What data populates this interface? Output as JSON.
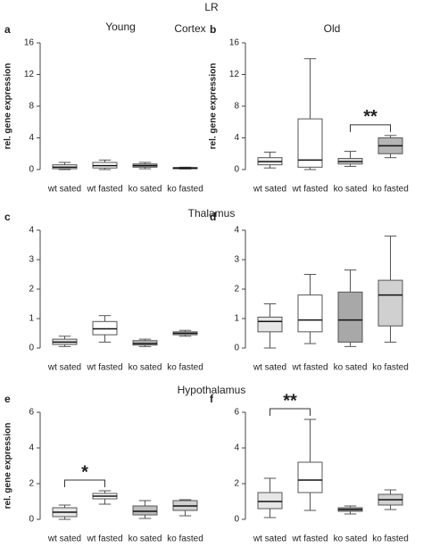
{
  "title": "LR",
  "column_labels": [
    "Young",
    "Old"
  ],
  "row_labels": [
    "Cortex",
    "Thalamus",
    "Hypothalamus"
  ],
  "chart_data": [
    {
      "type": "box",
      "panel": "a",
      "y_label": "rel. gene expression",
      "categories": [
        "wt sated",
        "wt fasted",
        "ko sated",
        "ko fasted"
      ],
      "boxes": [
        {
          "min": 0,
          "q1": 0.1,
          "median": 0.3,
          "q3": 0.6,
          "max": 0.9
        },
        {
          "min": 0,
          "q1": 0.2,
          "median": 0.5,
          "q3": 0.9,
          "max": 1.2
        },
        {
          "min": 0.1,
          "q1": 0.3,
          "median": 0.5,
          "q3": 0.7,
          "max": 0.9
        },
        {
          "min": 0.05,
          "q1": 0.1,
          "median": 0.2,
          "q3": 0.25,
          "max": 0.3
        }
      ],
      "colors": [
        "#f2f2f2",
        "#ffffff",
        "#bdbdbd",
        "#9e9e9e"
      ],
      "ylim": [
        0,
        16
      ],
      "yticks": [
        0,
        4,
        8,
        12,
        16
      ]
    },
    {
      "type": "box",
      "panel": "b",
      "y_label": "rel. gene expression",
      "categories": [
        "wt sated",
        "wt fasted",
        "ko sated",
        "ko fasted"
      ],
      "boxes": [
        {
          "min": 0.2,
          "q1": 0.6,
          "median": 1.0,
          "q3": 1.5,
          "max": 2.2
        },
        {
          "min": 0,
          "q1": 0.3,
          "median": 1.2,
          "q3": 6.4,
          "max": 14
        },
        {
          "min": 0.4,
          "q1": 0.7,
          "median": 1.0,
          "q3": 1.4,
          "max": 2.3
        },
        {
          "min": 1.5,
          "q1": 2.0,
          "median": 3.0,
          "q3": 4.0,
          "max": 4.3
        }
      ],
      "colors": [
        "#f2f2f2",
        "#ffffff",
        "#dcdcdc",
        "#b5b5b5"
      ],
      "ylim": [
        0,
        16
      ],
      "yticks": [
        0,
        4,
        8,
        12,
        16
      ],
      "annotations": [
        {
          "text": "**",
          "between": [
            "ko sated",
            "ko fasted"
          ]
        }
      ]
    },
    {
      "type": "box",
      "panel": "c",
      "categories": [
        "wt sated",
        "wt fasted",
        "ko sated",
        "ko fasted"
      ],
      "boxes": [
        {
          "min": 0.05,
          "q1": 0.12,
          "median": 0.2,
          "q3": 0.3,
          "max": 0.4
        },
        {
          "min": 0.2,
          "q1": 0.45,
          "median": 0.65,
          "q3": 0.9,
          "max": 1.1
        },
        {
          "min": 0.05,
          "q1": 0.1,
          "median": 0.15,
          "q3": 0.25,
          "max": 0.3
        },
        {
          "min": 0.4,
          "q1": 0.45,
          "median": 0.5,
          "q3": 0.55,
          "max": 0.6
        }
      ],
      "colors": [
        "#e6e6e6",
        "#ffffff",
        "#bdbdbd",
        "#d9d9d9"
      ],
      "ylim": [
        0,
        4
      ],
      "yticks": [
        0,
        1,
        2,
        3,
        4
      ]
    },
    {
      "type": "box",
      "panel": "d",
      "categories": [
        "wt sated",
        "wt fasted",
        "ko sated",
        "ko fasted"
      ],
      "boxes": [
        {
          "min": 0,
          "q1": 0.55,
          "median": 0.9,
          "q3": 1.05,
          "max": 1.5
        },
        {
          "min": 0.15,
          "q1": 0.55,
          "median": 0.95,
          "q3": 1.8,
          "max": 2.5
        },
        {
          "min": 0.05,
          "q1": 0.2,
          "median": 0.95,
          "q3": 1.9,
          "max": 2.65
        },
        {
          "min": 0.2,
          "q1": 0.75,
          "median": 1.8,
          "q3": 2.3,
          "max": 3.8
        }
      ],
      "colors": [
        "#e6e6e6",
        "#ffffff",
        "#a8a8a8",
        "#d0d0d0"
      ],
      "ylim": [
        0,
        4
      ],
      "yticks": [
        0,
        1,
        2,
        3,
        4
      ]
    },
    {
      "type": "box",
      "panel": "e",
      "y_label": "rel. gene expression",
      "categories": [
        "wt sated",
        "wt fasted",
        "ko sated",
        "ko fasted"
      ],
      "boxes": [
        {
          "min": 0,
          "q1": 0.15,
          "median": 0.4,
          "q3": 0.65,
          "max": 0.8
        },
        {
          "min": 0.85,
          "q1": 1.15,
          "median": 1.3,
          "q3": 1.45,
          "max": 1.6
        },
        {
          "min": 0.05,
          "q1": 0.25,
          "median": 0.45,
          "q3": 0.75,
          "max": 1.05
        },
        {
          "min": 0.2,
          "q1": 0.5,
          "median": 0.75,
          "q3": 1.05,
          "max": 1.1
        }
      ],
      "colors": [
        "#e6e6e6",
        "#ffffff",
        "#bdbdbd",
        "#d0d0d0"
      ],
      "ylim": [
        0,
        6
      ],
      "yticks": [
        0,
        2,
        4,
        6
      ],
      "annotations": [
        {
          "text": "*",
          "between": [
            "wt sated",
            "wt fasted"
          ]
        }
      ]
    },
    {
      "type": "box",
      "panel": "f",
      "categories": [
        "wt sated",
        "wt fasted",
        "ko sated",
        "ko fasted"
      ],
      "boxes": [
        {
          "min": 0.1,
          "q1": 0.6,
          "median": 1.0,
          "q3": 1.5,
          "max": 2.3
        },
        {
          "min": 0.5,
          "q1": 1.5,
          "median": 2.2,
          "q3": 3.2,
          "max": 5.6
        },
        {
          "min": 0.3,
          "q1": 0.45,
          "median": 0.55,
          "q3": 0.65,
          "max": 0.75
        },
        {
          "min": 0.55,
          "q1": 0.8,
          "median": 1.1,
          "q3": 1.4,
          "max": 1.65
        }
      ],
      "colors": [
        "#e6e6e6",
        "#ffffff",
        "#a8a8a8",
        "#d0d0d0"
      ],
      "ylim": [
        0,
        6
      ],
      "yticks": [
        0,
        2,
        4,
        6
      ],
      "annotations": [
        {
          "text": "**",
          "between": [
            "wt sated",
            "wt fasted"
          ]
        }
      ]
    }
  ]
}
